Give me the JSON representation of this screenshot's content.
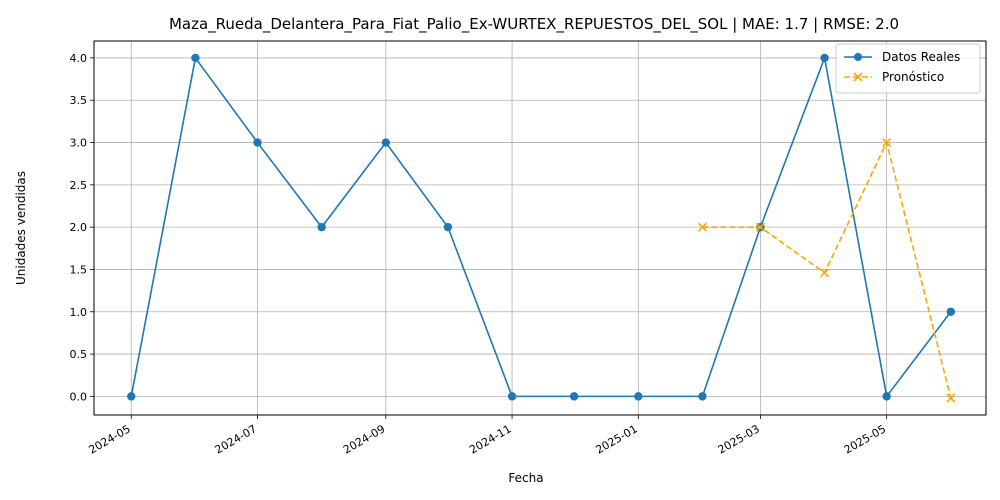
{
  "chart_data": {
    "type": "line",
    "title": "Maza_Rueda_Delantera_Para_Fiat_Palio_Ex-WURTEX_REPUESTOS_DEL_SOL | MAE: 1.7 | RMSE: 2.0",
    "xlabel": "Fecha",
    "ylabel": "Unidades vendidas",
    "xlim": [
      "2024-04-13",
      "2025-06-18"
    ],
    "ylim": [
      -0.22,
      4.2
    ],
    "x_ticks": [
      "2024-05",
      "2024-07",
      "2024-09",
      "2024-11",
      "2025-01",
      "2025-03",
      "2025-05"
    ],
    "x_tick_dates": [
      "2024-05-01",
      "2024-07-01",
      "2024-09-01",
      "2024-11-01",
      "2025-01-01",
      "2025-03-01",
      "2025-05-01"
    ],
    "y_ticks": [
      "0.0",
      "0.5",
      "1.0",
      "1.5",
      "2.0",
      "2.5",
      "3.0",
      "3.5",
      "4.0"
    ],
    "grid": true,
    "legend_position": "top-right",
    "series": [
      {
        "name": "Datos Reales",
        "color": "#1f77b4",
        "style": "solid",
        "marker": "circle",
        "x": [
          "2024-05-01",
          "2024-06-01",
          "2024-07-01",
          "2024-08-01",
          "2024-09-01",
          "2024-10-01",
          "2024-11-01",
          "2024-12-01",
          "2025-01-01",
          "2025-02-01",
          "2025-03-01",
          "2025-04-01",
          "2025-05-01",
          "2025-06-01"
        ],
        "values": [
          0,
          4,
          3,
          2,
          3,
          2,
          0,
          0,
          0,
          0,
          2,
          4,
          0,
          1
        ]
      },
      {
        "name": "Pronóstico",
        "color": "#ffa500",
        "style": "dashed",
        "marker": "x",
        "x": [
          "2025-02-01",
          "2025-03-01",
          "2025-04-01",
          "2025-05-01",
          "2025-06-01"
        ],
        "values": [
          2.0,
          2.0,
          1.46,
          3.0,
          -0.02
        ]
      }
    ]
  }
}
